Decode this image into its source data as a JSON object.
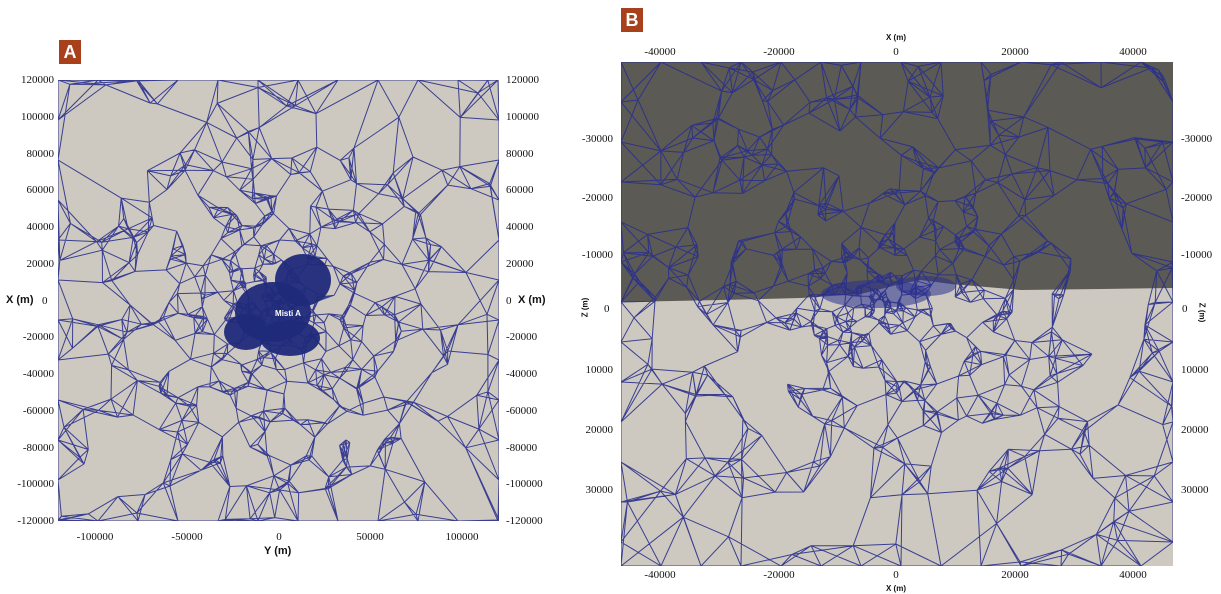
{
  "panel_a": {
    "badge": "A",
    "marker": "Misti A",
    "left_axis_label": "X (m)",
    "right_axis_label": "X (m)",
    "bottom_axis_label": "Y (m)",
    "y_ticks": [
      "120000",
      "100000",
      "80000",
      "60000",
      "40000",
      "20000",
      "0",
      "-20000",
      "-40000",
      "-60000",
      "-80000",
      "-100000",
      "-120000"
    ],
    "x_ticks": [
      "-100000",
      "-50000",
      "0",
      "50000",
      "100000"
    ],
    "colors": {
      "background": "#cdc9c0",
      "mesh": "#2a2f8c",
      "dense_core": "#1f2a7a"
    }
  },
  "panel_b": {
    "badge": "B",
    "top_axis_label": "X (m)",
    "bottom_axis_label": "X (m)",
    "left_axis_label": "Z (m)",
    "right_axis_label": "Z (m)",
    "x_ticks": [
      "-40000",
      "-20000",
      "0",
      "20000",
      "40000"
    ],
    "y_ticks": [
      "-30000",
      "-20000",
      "-10000",
      "0",
      "10000",
      "20000",
      "30000"
    ],
    "colors": {
      "atmosphere": "#5b5a55",
      "ground": "#cdc9c0",
      "mesh": "#2a2f8c"
    }
  }
}
